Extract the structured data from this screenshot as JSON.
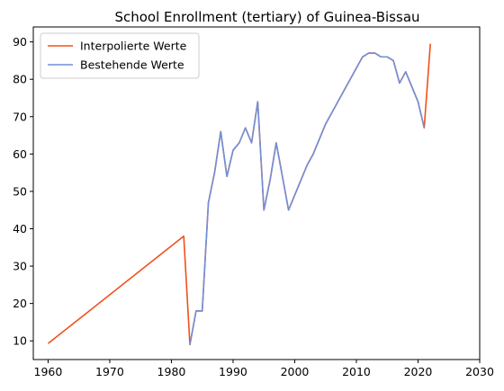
{
  "chart_data": {
    "type": "line",
    "title": "School Enrollment (tertiary) of Guinea-Bissau",
    "xlabel": "",
    "ylabel": "",
    "xlim": [
      1957.6,
      2030
    ],
    "ylim": [
      5.0,
      94.0
    ],
    "x_ticks": [
      1960,
      1970,
      1980,
      1990,
      2000,
      2010,
      2020,
      2030
    ],
    "y_ticks": [
      10,
      20,
      30,
      40,
      50,
      60,
      70,
      80,
      90
    ],
    "grid": false,
    "legend_position": "top-left",
    "series": [
      {
        "name": "Interpolierte Werte",
        "color": "#f0501a",
        "x": [
          1960,
          1982,
          1983,
          1984,
          1985,
          1986,
          1987,
          1988,
          1989,
          1990,
          1991,
          1992,
          1993,
          1994,
          1995,
          1996,
          1997,
          1998,
          1999,
          2000,
          2001,
          2002,
          2003,
          2004,
          2005,
          2006,
          2007,
          2008,
          2009,
          2010,
          2011,
          2012,
          2013,
          2014,
          2015,
          2016,
          2017,
          2018,
          2019,
          2020,
          2021,
          2022
        ],
        "values": [
          9.3,
          38,
          9,
          18,
          18,
          47,
          55,
          66,
          54,
          61,
          63,
          67,
          63,
          74,
          45,
          53,
          63,
          54,
          45,
          49,
          53,
          57,
          60,
          64,
          68,
          71,
          74,
          77,
          80,
          83,
          86,
          87,
          87,
          86,
          86,
          85,
          79,
          82,
          78,
          74,
          67,
          89.5
        ]
      },
      {
        "name": "Bestehende Werte",
        "color": "#7090d8",
        "x": [
          1983,
          1984,
          1985,
          1986,
          1987,
          1988,
          1989,
          1990,
          1991,
          1992,
          1993,
          1994,
          1995,
          1996,
          1997,
          1998,
          1999,
          2000,
          2001,
          2002,
          2003,
          2004,
          2005,
          2006,
          2007,
          2008,
          2009,
          2010,
          2011,
          2012,
          2013,
          2014,
          2015,
          2016,
          2017,
          2018,
          2019,
          2020,
          2021
        ],
        "values": [
          9,
          18,
          18,
          47,
          55,
          66,
          54,
          61,
          63,
          67,
          63,
          74,
          45,
          53,
          63,
          54,
          45,
          49,
          53,
          57,
          60,
          64,
          68,
          71,
          74,
          77,
          80,
          83,
          86,
          87,
          87,
          86,
          86,
          85,
          79,
          82,
          78,
          74,
          67
        ]
      }
    ]
  }
}
